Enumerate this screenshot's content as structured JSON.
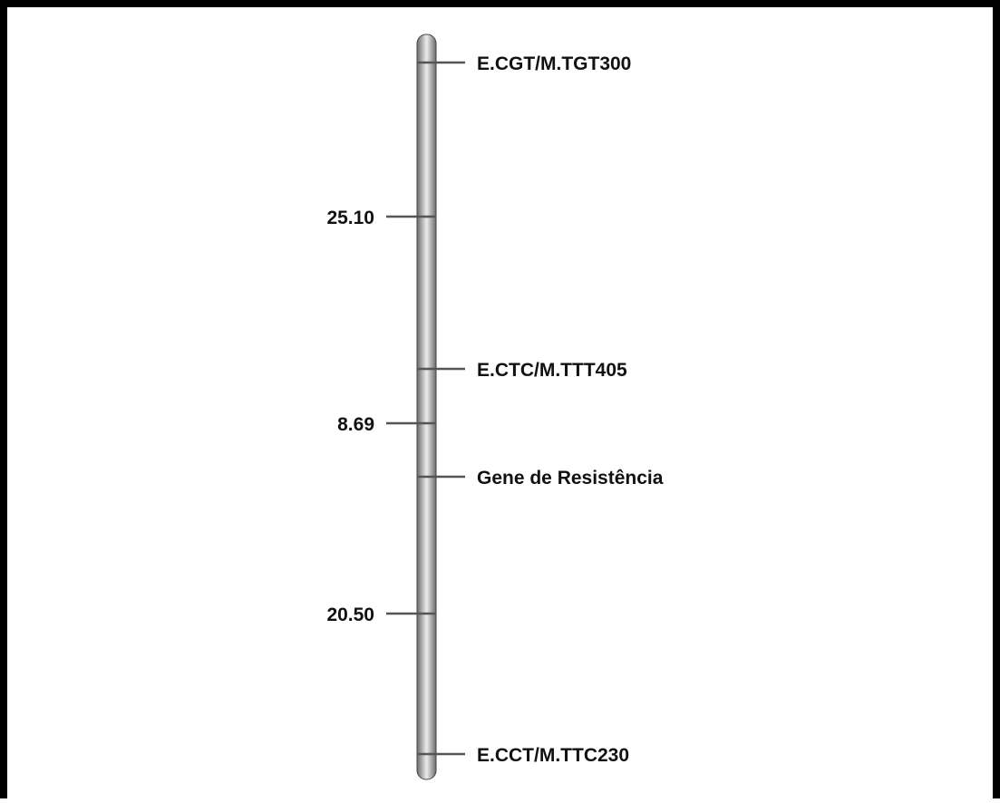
{
  "map": {
    "markers": [
      {
        "label": "E.CGT/M.TGT300"
      },
      {
        "label": "E.CTC/M.TTT405"
      },
      {
        "label": "Gene de Resistência"
      },
      {
        "label": "E.CCT/M.TTC230"
      }
    ],
    "distances": [
      {
        "label": "25.10"
      },
      {
        "label": "8.69"
      },
      {
        "label": "20.50"
      }
    ]
  },
  "colors": {
    "border": "#000000",
    "tick": "#555555",
    "chromosome_dark": "#6f6f6f",
    "chromosome_light": "#e9e9e9"
  }
}
